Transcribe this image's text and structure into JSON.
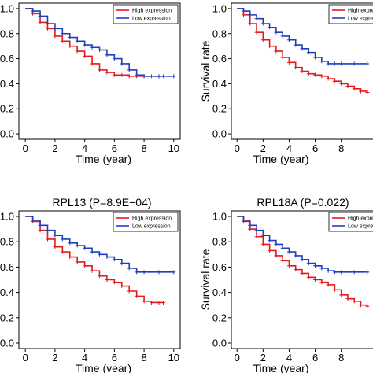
{
  "chart_data": [
    {
      "type": "line",
      "title": "",
      "xlabel": "Time (year)",
      "ylabel": "",
      "xlim": [
        0,
        10
      ],
      "ylim": [
        0,
        1
      ],
      "xticks": [
        "0",
        "2",
        "4",
        "6",
        "8",
        "10"
      ],
      "yticks": [
        "0.0",
        "0.2",
        "0.4",
        "0.6",
        "0.8",
        "1.0"
      ],
      "legend": "top-right",
      "series": [
        {
          "name": "High expression",
          "color": "#e31a1c",
          "x": [
            0,
            0.5,
            1,
            1.5,
            2,
            2.5,
            3,
            3.5,
            4,
            4.5,
            5,
            5.5,
            6,
            6.5,
            7,
            7.5,
            8,
            8.5,
            9,
            9.3
          ],
          "y": [
            1.0,
            0.96,
            0.89,
            0.84,
            0.78,
            0.74,
            0.7,
            0.66,
            0.62,
            0.56,
            0.51,
            0.49,
            0.47,
            0.47,
            0.46,
            0.46,
            0.46,
            0.46,
            0.46,
            0.46
          ]
        },
        {
          "name": "Low expression",
          "color": "#1f3fbf",
          "x": [
            0,
            0.5,
            1,
            1.5,
            2,
            2.5,
            3,
            3.5,
            4,
            4.5,
            5,
            5.5,
            6,
            6.5,
            7,
            7.5,
            8,
            9,
            10
          ],
          "y": [
            1.0,
            0.98,
            0.94,
            0.88,
            0.84,
            0.8,
            0.77,
            0.74,
            0.71,
            0.69,
            0.67,
            0.63,
            0.6,
            0.56,
            0.51,
            0.47,
            0.46,
            0.46,
            0.46
          ]
        }
      ]
    },
    {
      "type": "line",
      "title": "",
      "xlabel": "Time (year)",
      "ylabel": "Survival rate",
      "xlim": [
        0,
        10
      ],
      "ylim": [
        0,
        1
      ],
      "xticks": [
        "0",
        "2",
        "4",
        "6",
        "8"
      ],
      "yticks": [
        "0.0",
        "0.2",
        "0.4",
        "0.6",
        "0.8",
        "1.0"
      ],
      "legend": "top-right",
      "series": [
        {
          "name": "High expression",
          "color": "#e31a1c",
          "x": [
            0,
            0.5,
            1,
            1.5,
            2,
            2.5,
            3,
            3.5,
            4,
            4.5,
            5,
            5.5,
            6,
            6.5,
            7,
            7.5,
            8,
            8.5,
            9,
            9.5,
            10
          ],
          "y": [
            1.0,
            0.95,
            0.88,
            0.81,
            0.75,
            0.7,
            0.66,
            0.61,
            0.57,
            0.53,
            0.5,
            0.48,
            0.47,
            0.46,
            0.44,
            0.42,
            0.4,
            0.38,
            0.36,
            0.34,
            0.33
          ]
        },
        {
          "name": "Low expression",
          "color": "#1f3fbf",
          "x": [
            0,
            0.5,
            1,
            1.5,
            2,
            2.5,
            3,
            3.5,
            4,
            4.5,
            5,
            5.5,
            6,
            6.5,
            7,
            7.5,
            8,
            9,
            10
          ],
          "y": [
            1.0,
            0.98,
            0.95,
            0.92,
            0.88,
            0.85,
            0.81,
            0.78,
            0.75,
            0.71,
            0.68,
            0.65,
            0.61,
            0.58,
            0.56,
            0.56,
            0.56,
            0.56,
            0.56
          ]
        }
      ]
    },
    {
      "type": "line",
      "title": "RPL13 (P=8.9E−04)",
      "xlabel": "Time (year)",
      "ylabel": "",
      "xlim": [
        0,
        10
      ],
      "ylim": [
        0,
        1
      ],
      "xticks": [
        "0",
        "2",
        "4",
        "6",
        "8",
        "10"
      ],
      "yticks": [
        "0.0",
        "0.2",
        "0.4",
        "0.6",
        "0.8",
        "1.0"
      ],
      "legend": "top-right",
      "series": [
        {
          "name": "High expression",
          "color": "#e31a1c",
          "x": [
            0,
            0.5,
            1,
            1.5,
            2,
            2.5,
            3,
            3.5,
            4,
            4.5,
            5,
            5.5,
            6,
            6.5,
            7,
            7.5,
            8,
            8.5,
            9,
            9.3
          ],
          "y": [
            1.0,
            0.96,
            0.89,
            0.82,
            0.76,
            0.72,
            0.68,
            0.64,
            0.61,
            0.57,
            0.53,
            0.5,
            0.48,
            0.45,
            0.41,
            0.37,
            0.33,
            0.32,
            0.32,
            0.32
          ]
        },
        {
          "name": "Low expression",
          "color": "#1f3fbf",
          "x": [
            0,
            0.5,
            1,
            1.5,
            2,
            2.5,
            3,
            3.5,
            4,
            4.5,
            5,
            5.5,
            6,
            6.5,
            7,
            7.5,
            8,
            9,
            10
          ],
          "y": [
            1.0,
            0.97,
            0.93,
            0.89,
            0.85,
            0.82,
            0.79,
            0.77,
            0.75,
            0.72,
            0.7,
            0.68,
            0.66,
            0.63,
            0.59,
            0.56,
            0.56,
            0.56,
            0.56
          ]
        }
      ]
    },
    {
      "type": "line",
      "title": "RPL18A (P=0.022)",
      "xlabel": "Time (year)",
      "ylabel": "Survival rate",
      "xlim": [
        0,
        10
      ],
      "ylim": [
        0,
        1
      ],
      "xticks": [
        "0",
        "2",
        "4",
        "6",
        "8"
      ],
      "yticks": [
        "0.0",
        "0.2",
        "0.4",
        "0.6",
        "0.8",
        "1.0"
      ],
      "legend": "top-right",
      "series": [
        {
          "name": "High expression",
          "color": "#e31a1c",
          "x": [
            0,
            0.5,
            1,
            1.5,
            2,
            2.5,
            3,
            3.5,
            4,
            4.5,
            5,
            5.5,
            6,
            6.5,
            7,
            7.5,
            8,
            8.5,
            9,
            9.5,
            10
          ],
          "y": [
            1.0,
            0.96,
            0.9,
            0.84,
            0.78,
            0.73,
            0.69,
            0.65,
            0.61,
            0.58,
            0.55,
            0.52,
            0.5,
            0.48,
            0.46,
            0.42,
            0.38,
            0.35,
            0.33,
            0.3,
            0.29
          ]
        },
        {
          "name": "Low expression",
          "color": "#1f3fbf",
          "x": [
            0,
            0.5,
            1,
            1.5,
            2,
            2.5,
            3,
            3.5,
            4,
            4.5,
            5,
            5.5,
            6,
            6.5,
            7,
            7.5,
            8,
            9,
            10
          ],
          "y": [
            1.0,
            0.97,
            0.93,
            0.89,
            0.85,
            0.81,
            0.78,
            0.75,
            0.72,
            0.69,
            0.66,
            0.63,
            0.61,
            0.59,
            0.57,
            0.56,
            0.56,
            0.56,
            0.56
          ]
        }
      ]
    }
  ]
}
